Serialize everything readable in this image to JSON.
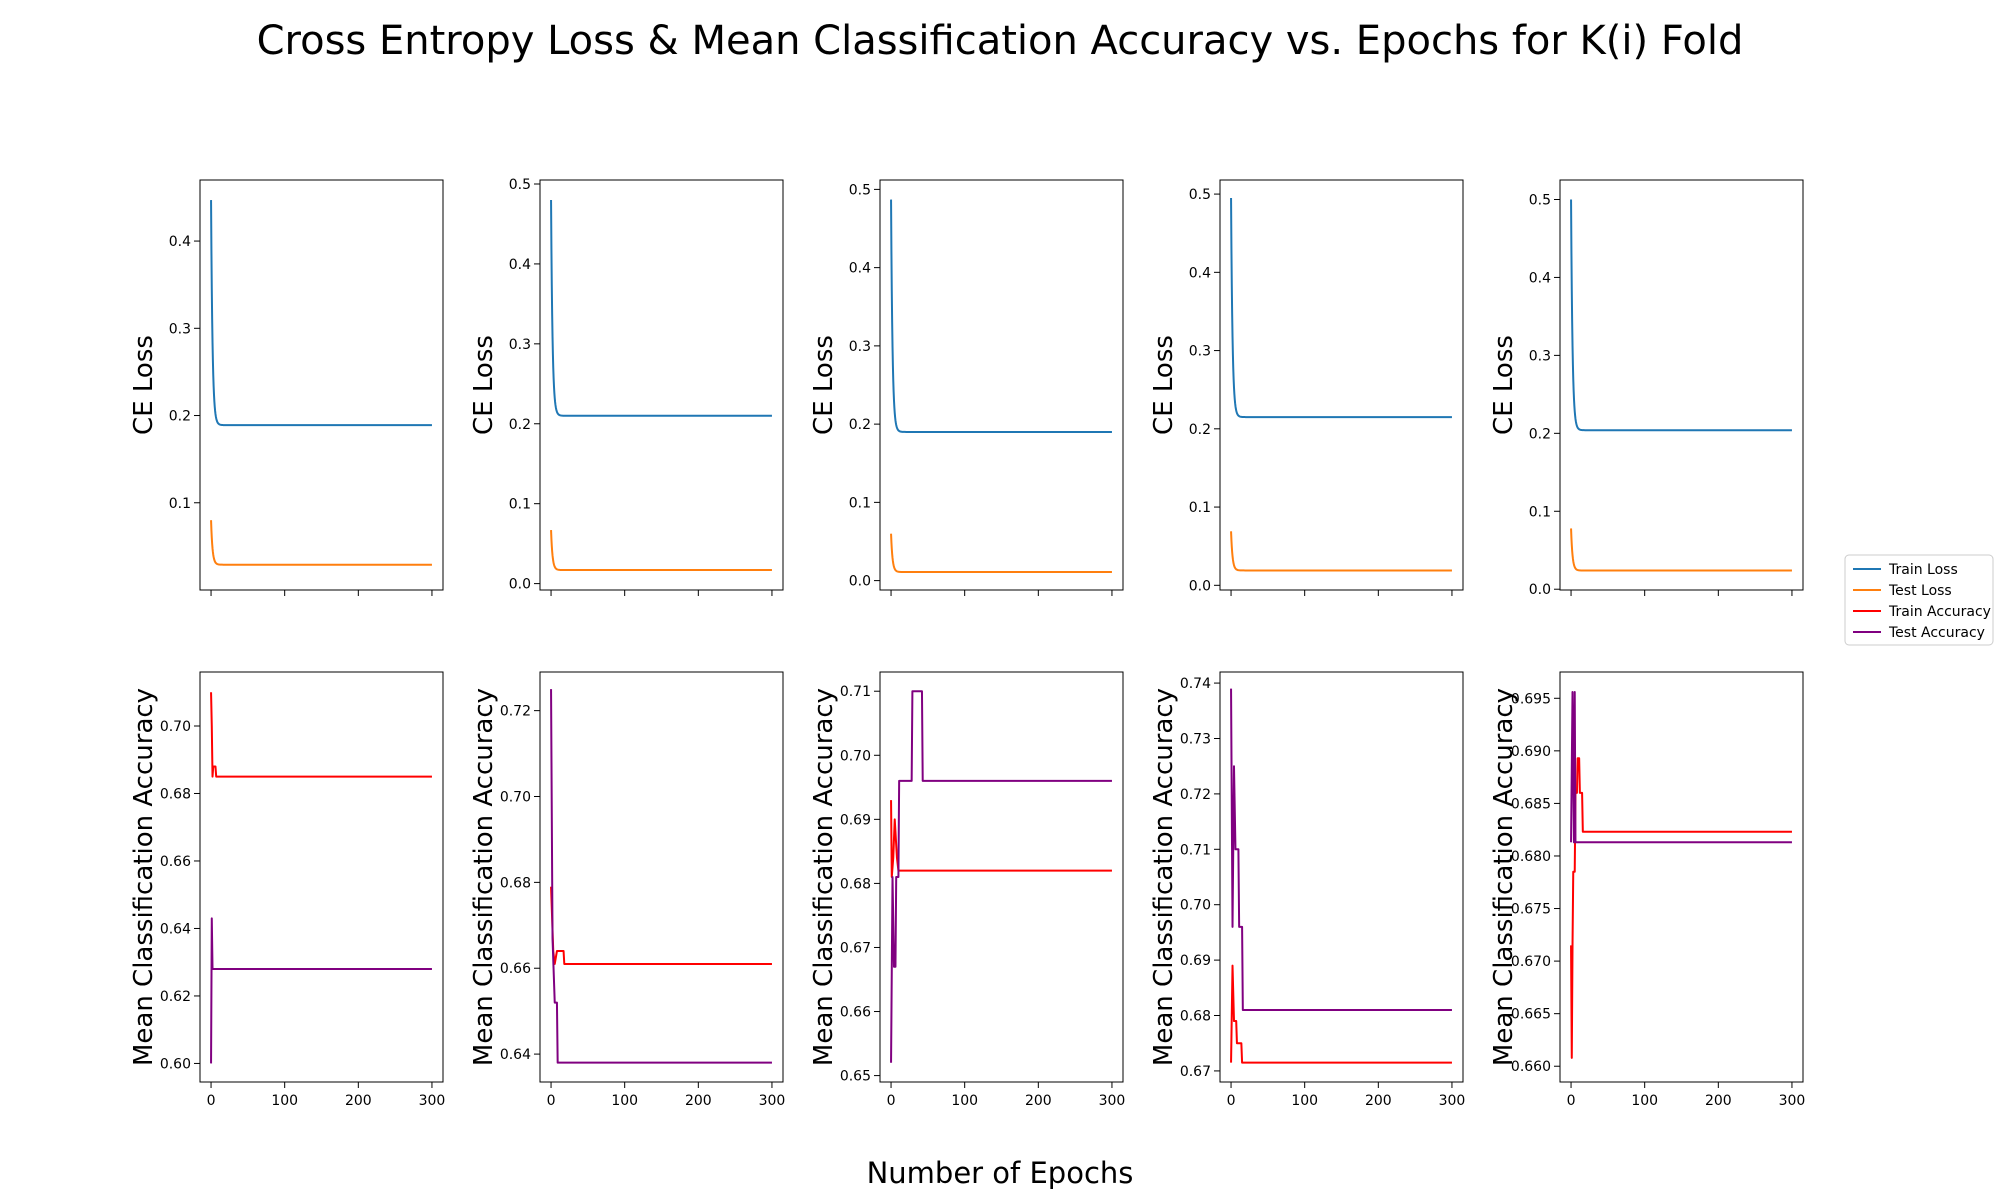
{
  "chart_data": {
    "type": "line",
    "title": "Cross Entropy Loss & Mean Classification Accuracy vs. Epochs for K(i) Fold",
    "xlabel": "Number of Epochs",
    "legend_position": "right",
    "grid": false,
    "colors": {
      "Train Loss": "#1f77b4",
      "Test Loss": "#ff7f0e",
      "Train Accuracy": "#ff0000",
      "Test Accuracy": "#800080"
    },
    "legend": [
      "Train Loss",
      "Test Loss",
      "Train Accuracy",
      "Test Accuracy"
    ],
    "loss_panels": [
      {
        "ylabel": "CE Loss",
        "xlim": [
          -15,
          315
        ],
        "ylim": [
          0.0,
          0.47
        ],
        "yticks": [
          "0.1",
          "0.2",
          "0.3",
          "0.4"
        ],
        "xticks": [
          0,
          100,
          200,
          300
        ],
        "series": [
          {
            "name": "Train Loss",
            "start": 0.447,
            "plateau": 0.189,
            "tau": 2.0
          },
          {
            "name": "Test Loss",
            "start": 0.08,
            "plateau": 0.029,
            "tau": 2.0
          }
        ]
      },
      {
        "ylabel": "CE Loss",
        "xlim": [
          -15,
          315
        ],
        "ylim": [
          -0.008,
          0.505
        ],
        "yticks": [
          "0.0",
          "0.1",
          "0.2",
          "0.3",
          "0.4",
          "0.5"
        ],
        "xticks": [
          0,
          100,
          200,
          300
        ],
        "series": [
          {
            "name": "Train Loss",
            "start": 0.48,
            "plateau": 0.21,
            "tau": 2.0
          },
          {
            "name": "Test Loss",
            "start": 0.067,
            "plateau": 0.017,
            "tau": 2.0
          }
        ]
      },
      {
        "ylabel": "CE Loss",
        "xlim": [
          -15,
          315
        ],
        "ylim": [
          -0.012,
          0.512
        ],
        "yticks": [
          "0.0",
          "0.1",
          "0.2",
          "0.3",
          "0.4",
          "0.5"
        ],
        "xticks": [
          0,
          100,
          200,
          300
        ],
        "series": [
          {
            "name": "Train Loss",
            "start": 0.487,
            "plateau": 0.19,
            "tau": 2.0
          },
          {
            "name": "Test Loss",
            "start": 0.06,
            "plateau": 0.011,
            "tau": 2.0
          }
        ]
      },
      {
        "ylabel": "CE Loss",
        "xlim": [
          -15,
          315
        ],
        "ylim": [
          -0.006,
          0.518
        ],
        "yticks": [
          "0.0",
          "0.1",
          "0.2",
          "0.3",
          "0.4",
          "0.5"
        ],
        "xticks": [
          0,
          100,
          200,
          300
        ],
        "series": [
          {
            "name": "Train Loss",
            "start": 0.495,
            "plateau": 0.215,
            "tau": 2.0
          },
          {
            "name": "Test Loss",
            "start": 0.069,
            "plateau": 0.019,
            "tau": 2.0
          }
        ]
      },
      {
        "ylabel": "CE Loss",
        "xlim": [
          -15,
          315
        ],
        "ylim": [
          -0.001,
          0.525
        ],
        "yticks": [
          "0.0",
          "0.1",
          "0.2",
          "0.3",
          "0.4",
          "0.5"
        ],
        "xticks": [
          0,
          100,
          200,
          300
        ],
        "series": [
          {
            "name": "Train Loss",
            "start": 0.5,
            "plateau": 0.204,
            "tau": 2.0
          },
          {
            "name": "Test Loss",
            "start": 0.078,
            "plateau": 0.024,
            "tau": 2.0
          }
        ]
      }
    ],
    "accuracy_panels": [
      {
        "ylabel": "Mean Classification Accuracy",
        "xlim": [
          -15,
          315
        ],
        "ylim": [
          0.5945,
          0.716
        ],
        "yticks": [
          "0.60",
          "0.62",
          "0.64",
          "0.66",
          "0.68",
          "0.70"
        ],
        "xticks": [
          0,
          100,
          200,
          300
        ],
        "series": [
          {
            "name": "Train Accuracy",
            "points": [
              [
                0,
                0.71
              ],
              [
                1,
                0.7
              ],
              [
                2,
                0.685
              ],
              [
                3,
                0.688
              ],
              [
                6,
                0.688
              ],
              [
                7,
                0.685
              ],
              [
                300,
                0.685
              ]
            ]
          },
          {
            "name": "Test Accuracy",
            "points": [
              [
                0,
                0.6
              ],
              [
                1,
                0.643
              ],
              [
                2,
                0.628
              ],
              [
                300,
                0.628
              ]
            ]
          }
        ]
      },
      {
        "ylabel": "Mean Classification Accuracy",
        "xlim": [
          -15,
          315
        ],
        "ylim": [
          0.6335,
          0.729
        ],
        "yticks": [
          "0.64",
          "0.66",
          "0.68",
          "0.70",
          "0.72"
        ],
        "xticks": [
          0,
          100,
          200,
          300
        ],
        "series": [
          {
            "name": "Train Accuracy",
            "points": [
              [
                0,
                0.679
              ],
              [
                3,
                0.664
              ],
              [
                5,
                0.661
              ],
              [
                8,
                0.664
              ],
              [
                17,
                0.664
              ],
              [
                18,
                0.661
              ],
              [
                300,
                0.661
              ]
            ]
          },
          {
            "name": "Test Accuracy",
            "points": [
              [
                0,
                0.725
              ],
              [
                2,
                0.667
              ],
              [
                5,
                0.652
              ],
              [
                8,
                0.652
              ],
              [
                9,
                0.638
              ],
              [
                300,
                0.638
              ]
            ]
          }
        ]
      },
      {
        "ylabel": "Mean Classification Accuracy",
        "xlim": [
          -15,
          315
        ],
        "ylim": [
          0.649,
          0.713
        ],
        "yticks": [
          "0.65",
          "0.66",
          "0.67",
          "0.68",
          "0.69",
          "0.70",
          "0.71"
        ],
        "xticks": [
          0,
          100,
          200,
          300
        ],
        "series": [
          {
            "name": "Train Accuracy",
            "points": [
              [
                0,
                0.693
              ],
              [
                1,
                0.681
              ],
              [
                3,
                0.684
              ],
              [
                5,
                0.69
              ],
              [
                8,
                0.684
              ],
              [
                10,
                0.682
              ],
              [
                300,
                0.682
              ]
            ]
          },
          {
            "name": "Test Accuracy",
            "points": [
              [
                0,
                0.652
              ],
              [
                2,
                0.681
              ],
              [
                4,
                0.667
              ],
              [
                6,
                0.667
              ],
              [
                7,
                0.681
              ],
              [
                10,
                0.681
              ],
              [
                11,
                0.696
              ],
              [
                28,
                0.696
              ],
              [
                29,
                0.71
              ],
              [
                42,
                0.71
              ],
              [
                43,
                0.696
              ],
              [
                300,
                0.696
              ]
            ]
          }
        ]
      },
      {
        "ylabel": "Mean Classification Accuracy",
        "xlim": [
          -15,
          315
        ],
        "ylim": [
          0.668,
          0.742
        ],
        "yticks": [
          "0.67",
          "0.68",
          "0.69",
          "0.70",
          "0.71",
          "0.72",
          "0.73",
          "0.74"
        ],
        "xticks": [
          0,
          100,
          200,
          300
        ],
        "series": [
          {
            "name": "Train Accuracy",
            "points": [
              [
                0,
                0.6715
              ],
              [
                2,
                0.689
              ],
              [
                4,
                0.679
              ],
              [
                7,
                0.679
              ],
              [
                8,
                0.675
              ],
              [
                14,
                0.675
              ],
              [
                15,
                0.6715
              ],
              [
                300,
                0.6715
              ]
            ]
          },
          {
            "name": "Test Accuracy",
            "points": [
              [
                0,
                0.739
              ],
              [
                2,
                0.696
              ],
              [
                4,
                0.725
              ],
              [
                6,
                0.71
              ],
              [
                10,
                0.71
              ],
              [
                11,
                0.696
              ],
              [
                15,
                0.696
              ],
              [
                16,
                0.681
              ],
              [
                300,
                0.681
              ]
            ]
          }
        ]
      },
      {
        "ylabel": "Mean Classification Accuracy",
        "xlim": [
          -15,
          315
        ],
        "ylim": [
          0.6585,
          0.6975
        ],
        "yticks": [
          "0.660",
          "0.665",
          "0.670",
          "0.675",
          "0.680",
          "0.685",
          "0.690",
          "0.695"
        ],
        "xticks": [
          0,
          100,
          200,
          300
        ],
        "series": [
          {
            "name": "Train Accuracy",
            "points": [
              [
                0,
                0.6715
              ],
              [
                1,
                0.6608
              ],
              [
                2,
                0.6715
              ],
              [
                3,
                0.6785
              ],
              [
                5,
                0.6785
              ],
              [
                6,
                0.686
              ],
              [
                8,
                0.686
              ],
              [
                9,
                0.6893
              ],
              [
                11,
                0.6893
              ],
              [
                12,
                0.686
              ],
              [
                15,
                0.686
              ],
              [
                16,
                0.6823
              ],
              [
                300,
                0.6823
              ]
            ]
          },
          {
            "name": "Test Accuracy",
            "points": [
              [
                0,
                0.6813
              ],
              [
                2,
                0.6956
              ],
              [
                4,
                0.6813
              ],
              [
                5,
                0.6956
              ],
              [
                6,
                0.6813
              ],
              [
                300,
                0.6813
              ]
            ]
          }
        ]
      }
    ]
  }
}
